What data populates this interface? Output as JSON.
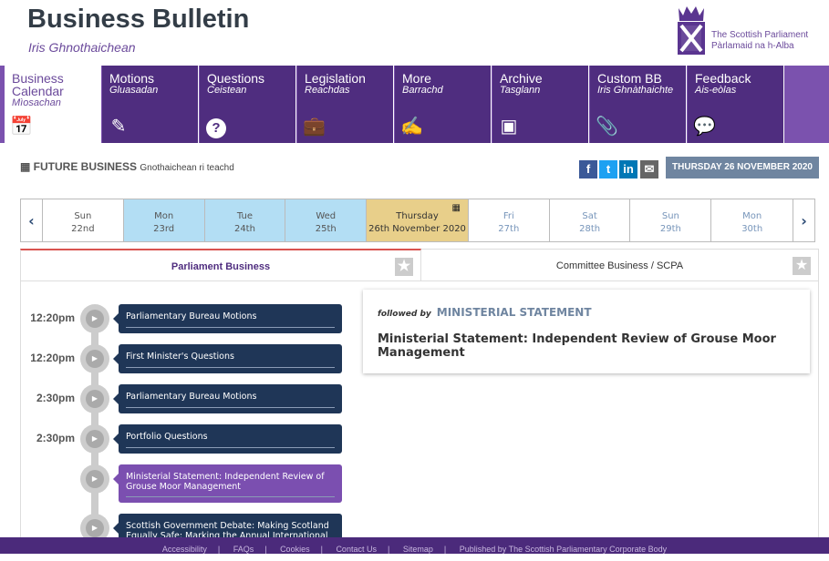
{
  "header": {
    "title": "Business Bulletin",
    "subtitle": "Iris Ghnothaichean",
    "logo_line1": "The Scottish Parliament",
    "logo_line2": "Pàrlamaid na h-Alba"
  },
  "nav": [
    {
      "label": "Business Calendar",
      "gaelic": "Mìosachan",
      "icon": "calendar-clock-icon",
      "active": true
    },
    {
      "label": "Motions",
      "gaelic": "Gluasadan",
      "icon": "edit-icon"
    },
    {
      "label": "Questions",
      "gaelic": "Ceistean",
      "icon": "question-icon"
    },
    {
      "label": "Legislation",
      "gaelic": "Reachdas",
      "icon": "briefcase-icon"
    },
    {
      "label": "More",
      "gaelic": "Barrachd",
      "icon": "quill-icon"
    },
    {
      "label": "Archive",
      "gaelic": "Tasglann",
      "icon": "box-icon"
    },
    {
      "label": "Custom BB",
      "gaelic": "Iris Ghnàthaichte",
      "icon": "paperclip-icon"
    },
    {
      "label": "Feedback",
      "gaelic": "Ais-eòlas",
      "icon": "chat-icon"
    }
  ],
  "future": {
    "title": "FUTURE BUSINESS",
    "gaelic": "Gnothaichean ri teachd",
    "date_button": "THURSDAY 26 NOVEMBER 2020"
  },
  "social": {
    "facebook": "f",
    "twitter": "t",
    "linkedin": "in",
    "email": "✉"
  },
  "days": [
    {
      "d": "Sun",
      "n": "22nd",
      "state": "white"
    },
    {
      "d": "Mon",
      "n": "23rd",
      "state": "past"
    },
    {
      "d": "Tue",
      "n": "24th",
      "state": "past"
    },
    {
      "d": "Wed",
      "n": "25th",
      "state": "past"
    },
    {
      "d": "Thursday",
      "n": "26th November 2020",
      "state": "current"
    },
    {
      "d": "Fri",
      "n": "27th",
      "state": "next"
    },
    {
      "d": "Sat",
      "n": "28th",
      "state": "next"
    },
    {
      "d": "Sun",
      "n": "29th",
      "state": "next"
    },
    {
      "d": "Mon",
      "n": "30th",
      "state": "next"
    }
  ],
  "tabs": {
    "parliament": "Parliament Business",
    "committee": "Committee Business / SCPA"
  },
  "timeline": [
    {
      "time": "12:20pm",
      "title": "Parliamentary Bureau Motions"
    },
    {
      "time": "12:20pm",
      "title": "First Minister's Questions"
    },
    {
      "time": "2:30pm",
      "title": "Parliamentary Bureau Motions"
    },
    {
      "time": "2:30pm",
      "title": "Portfolio Questions"
    },
    {
      "time": "",
      "title": "Ministerial Statement: Independent Review of Grouse Moor Management",
      "selected": true
    },
    {
      "time": "",
      "title": "Scottish Government Debate: Making Scotland Equally Safe: Marking the Annual International"
    }
  ],
  "detail": {
    "followed_by": "followed by",
    "type": "MINISTERIAL STATEMENT",
    "title": "Ministerial Statement: Independent Review of Grouse Moor Management"
  },
  "footer": [
    "Accessibility",
    "FAQs",
    "Cookies",
    "Contact Us",
    "Sitemap",
    "Published by The Scottish Parliamentary Corporate Body"
  ],
  "colors": {
    "nav": "#4f2d7f",
    "past": "#b3def4",
    "current": "#e8cf8a",
    "card": "#1f3657",
    "selected": "#7b4fb0"
  }
}
